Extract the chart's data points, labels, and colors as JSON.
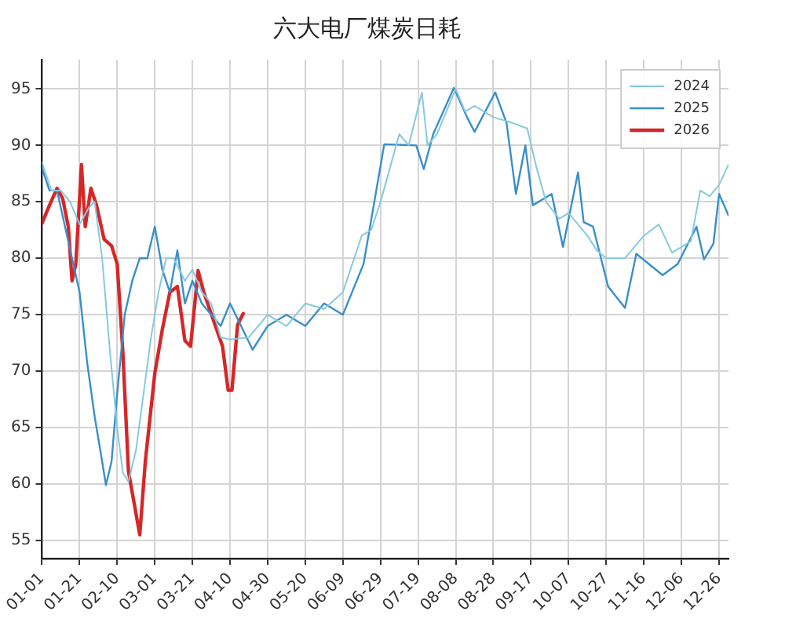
{
  "chart_data": {
    "type": "line",
    "title": "六大电厂煤炭日耗",
    "xlim": [
      "--01-01",
      "--12-31"
    ],
    "ylim": [
      53.4,
      97.6
    ],
    "xticks": [
      {
        "value": "--01-01",
        "label": "01-01"
      },
      {
        "value": "--01-21",
        "label": "01-21"
      },
      {
        "value": "--02-10",
        "label": "02-10"
      },
      {
        "value": "--03-01",
        "label": "03-01"
      },
      {
        "value": "--03-21",
        "label": "03-21"
      },
      {
        "value": "--04-10",
        "label": "04-10"
      },
      {
        "value": "--04-30",
        "label": "04-30"
      },
      {
        "value": "--05-20",
        "label": "05-20"
      },
      {
        "value": "--06-09",
        "label": "06-09"
      },
      {
        "value": "--06-29",
        "label": "06-29"
      },
      {
        "value": "--07-19",
        "label": "07-19"
      },
      {
        "value": "--08-08",
        "label": "08-08"
      },
      {
        "value": "--08-28",
        "label": "08-28"
      },
      {
        "value": "--09-17",
        "label": "09-17"
      },
      {
        "value": "--10-07",
        "label": "10-07"
      },
      {
        "value": "--10-27",
        "label": "10-27"
      },
      {
        "value": "--11-16",
        "label": "11-16"
      },
      {
        "value": "--12-06",
        "label": "12-06"
      },
      {
        "value": "--12-26",
        "label": "12-26"
      }
    ],
    "yticks": [
      55,
      60,
      65,
      70,
      75,
      80,
      85,
      90,
      95
    ],
    "grid": true,
    "legend": "top right",
    "marker": "none",
    "line_style": "solid",
    "series": [
      {
        "name": "2024",
        "color": "#86c9e0",
        "x": [
          "--01-01",
          "--01-06",
          "--01-11",
          "--01-16",
          "--01-21",
          "--01-26",
          "--01-29",
          "--02-02",
          "--02-06",
          "--02-10",
          "--02-13",
          "--02-16",
          "--02-20",
          "--02-24",
          "--02-28",
          "--03-03",
          "--03-07",
          "--03-11",
          "--03-17",
          "--03-21",
          "--03-26",
          "--03-31",
          "--04-05",
          "--04-10",
          "--04-20",
          "--04-30",
          "--05-10",
          "--05-20",
          "--05-30",
          "--06-09",
          "--06-19",
          "--06-24",
          "--06-29",
          "--07-04",
          "--07-09",
          "--07-14",
          "--07-21",
          "--07-24",
          "--07-29",
          "--08-03",
          "--08-08",
          "--08-13",
          "--08-18",
          "--08-28",
          "--09-07",
          "--09-15",
          "--09-20",
          "--09-25",
          "--10-02",
          "--10-07",
          "--10-17",
          "--10-22",
          "--10-27",
          "--11-06",
          "--11-16",
          "--11-24",
          "--12-01",
          "--12-11",
          "--12-16",
          "--12-21",
          "--12-26",
          "--12-31"
        ],
        "values": [
          88.5,
          86,
          86,
          85,
          83,
          84.5,
          85,
          80,
          72,
          65,
          61,
          60.2,
          63,
          68,
          73,
          77,
          80,
          80,
          78,
          79,
          77,
          76,
          73,
          72.8,
          73,
          75,
          74,
          76,
          75.5,
          77,
          82,
          82.5,
          85,
          88,
          91,
          90,
          94.7,
          90,
          91,
          93,
          95,
          93,
          93.5,
          92.5,
          92,
          91.5,
          88,
          85,
          83.5,
          84,
          82,
          80.7,
          80,
          80,
          82,
          83,
          80.5,
          81.5,
          86,
          85.5,
          86.5,
          88.3
        ]
      },
      {
        "name": "2025",
        "color": "#3a8fc8",
        "x": [
          "--01-01",
          "--01-05",
          "--01-09",
          "--01-13",
          "--01-17",
          "--01-21",
          "--01-25",
          "--01-29",
          "--02-02",
          "--02-04",
          "--02-07",
          "--02-10",
          "--02-14",
          "--02-18",
          "--02-22",
          "--02-26",
          "--03-01",
          "--03-05",
          "--03-09",
          "--03-13",
          "--03-17",
          "--03-21",
          "--03-26",
          "--03-31",
          "--04-05",
          "--04-10",
          "--04-22",
          "--04-30",
          "--05-10",
          "--05-20",
          "--05-30",
          "--06-09",
          "--06-20",
          "--07-01",
          "--07-18",
          "--07-22",
          "--07-27",
          "--08-07",
          "--08-14",
          "--08-18",
          "--08-29",
          "--09-04",
          "--09-09",
          "--09-14",
          "--09-18",
          "--09-28",
          "--10-04",
          "--10-12",
          "--10-15",
          "--10-20",
          "--10-28",
          "--11-06",
          "--11-12",
          "--11-26",
          "--12-04",
          "--12-14",
          "--12-18",
          "--12-23",
          "--12-26",
          "--12-31"
        ],
        "values": [
          88,
          86,
          86,
          83,
          80,
          77,
          70.8,
          66,
          62,
          59.9,
          62,
          68,
          75,
          78,
          80,
          80,
          82.8,
          79,
          77,
          80.7,
          76,
          78,
          76,
          75,
          74,
          76,
          71.9,
          74,
          75,
          74,
          76,
          75,
          79.5,
          90.1,
          90,
          87.9,
          91,
          95.1,
          92.5,
          91.2,
          94.7,
          92,
          85.7,
          90,
          84.7,
          85.7,
          81,
          87.6,
          83.2,
          82.8,
          77.5,
          75.6,
          80.4,
          78.5,
          79.5,
          82.8,
          79.9,
          81.3,
          85.7,
          83.8
        ]
      },
      {
        "name": "2026",
        "color": "#d62728",
        "x": [
          "--01-01",
          "--01-05",
          "--01-09",
          "--01-12",
          "--01-15",
          "--01-17",
          "--01-19",
          "--01-22",
          "--01-24",
          "--01-27",
          "--01-30",
          "--02-03",
          "--02-07",
          "--02-10",
          "--02-13",
          "--02-16",
          "--02-22",
          "--02-25",
          "--03-01",
          "--03-05",
          "--03-09",
          "--03-13",
          "--03-17",
          "--03-20",
          "--03-24",
          "--03-27",
          "--04-01",
          "--04-06",
          "--04-09",
          "--04-11",
          "--04-14",
          "--04-17"
        ],
        "values": [
          83.1,
          84.7,
          86.2,
          85.3,
          82.8,
          78,
          79.5,
          88.3,
          82.8,
          86.2,
          84.7,
          81.7,
          81.1,
          79.5,
          71.7,
          61.1,
          55.5,
          62.1,
          69.8,
          73.7,
          77,
          77.5,
          72.7,
          72.2,
          78.9,
          77,
          74.6,
          72.2,
          68.3,
          68.3,
          74.1,
          75.1
        ]
      }
    ]
  }
}
